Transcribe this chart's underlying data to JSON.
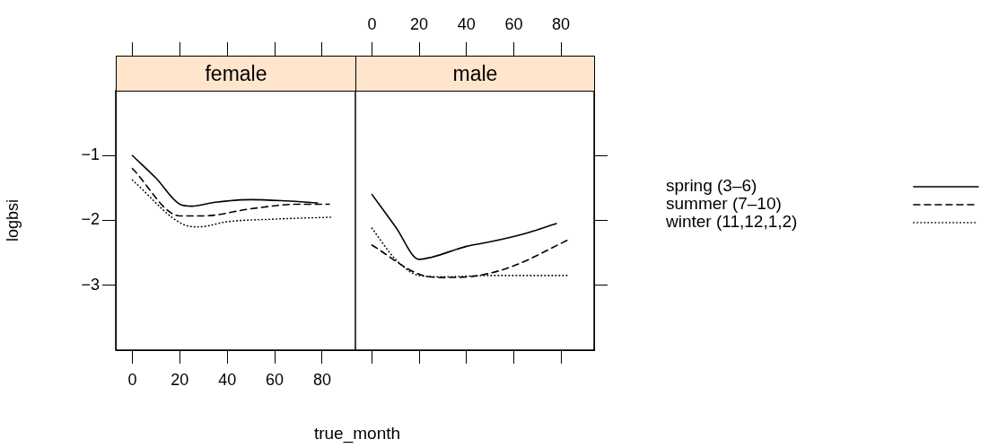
{
  "chart_data": [
    {
      "type": "line",
      "title": "female",
      "xlabel": "true_month",
      "ylabel": "logbsi",
      "xlim": [
        -7,
        94
      ],
      "xticks": [
        0,
        20,
        40,
        60,
        80
      ],
      "ylim": [
        -4.0,
        0.0
      ],
      "yticks": [
        -3,
        -2,
        -1
      ],
      "grid": false,
      "legend": false,
      "marker": "none",
      "series": [
        {
          "color": "#000000",
          "line_style": "solid",
          "x": [
            0,
            10,
            20,
            25,
            35,
            50,
            65,
            78
          ],
          "values": [
            -1.0,
            -1.35,
            -1.75,
            -1.78,
            -1.72,
            -1.68,
            -1.7,
            -1.73
          ]
        },
        {
          "color": "#000000",
          "line_style": "dashed",
          "x": [
            0,
            20,
            30,
            50,
            70,
            83
          ],
          "values": [
            -1.2,
            -1.93,
            -1.93,
            -1.82,
            -1.75,
            -1.75
          ]
        },
        {
          "color": "#000000",
          "line_style": "dotted",
          "x": [
            0,
            22,
            28,
            40,
            60,
            84
          ],
          "values": [
            -1.38,
            -2.07,
            -2.1,
            -2.02,
            -1.98,
            -1.95
          ]
        }
      ]
    },
    {
      "type": "line",
      "title": "male",
      "xlim": [
        -7,
        94
      ],
      "xticks": [
        0,
        20,
        40,
        60,
        80
      ],
      "ylim": [
        -4.0,
        0.0
      ],
      "yticks": [
        -3,
        -2,
        -1
      ],
      "tick_labels": "x",
      "grid": false,
      "legend": "right",
      "marker": "none",
      "series": [
        {
          "name": "spring (3–6)",
          "color": "#000000",
          "line_style": "solid",
          "x": [
            0,
            10,
            20,
            25,
            40,
            50,
            65,
            78
          ],
          "values": [
            -1.6,
            -2.1,
            -2.6,
            -2.57,
            -2.4,
            -2.33,
            -2.2,
            -2.05
          ]
        },
        {
          "name": "summer (7–10)",
          "color": "#000000",
          "line_style": "dashed",
          "x": [
            0,
            20,
            30,
            45,
            60,
            83
          ],
          "values": [
            -2.38,
            -2.83,
            -2.88,
            -2.85,
            -2.7,
            -2.3
          ]
        },
        {
          "name": "winter (11,12,1,2)",
          "color": "#000000",
          "line_style": "dotted",
          "x": [
            0,
            10,
            20,
            30,
            50,
            83
          ],
          "values": [
            -2.12,
            -2.6,
            -2.85,
            -2.87,
            -2.85,
            -2.85
          ]
        }
      ]
    }
  ]
}
